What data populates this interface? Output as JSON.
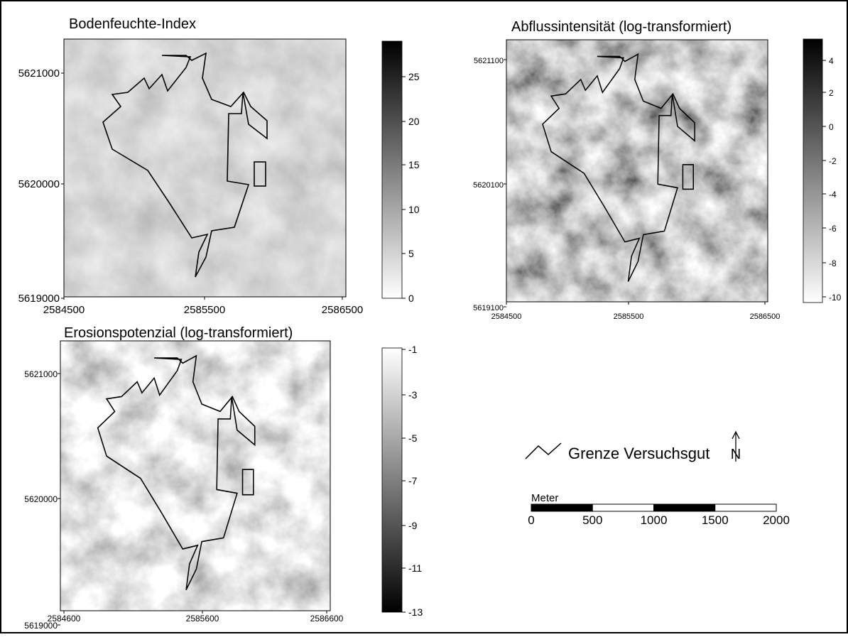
{
  "panels": [
    {
      "title": "Bodenfeuchte-Index",
      "y_ticks": [
        "5621000",
        "5620000",
        "5619000"
      ],
      "x_ticks": [
        "2584500",
        "2585500",
        "2586500"
      ],
      "colorbar_ticks": [
        "25",
        "20",
        "15",
        "10",
        "5",
        "0"
      ]
    },
    {
      "title": "Abflussintensität (log-transformiert)",
      "y_ticks": [
        "5621100",
        "5620100",
        "5619100"
      ],
      "x_ticks": [
        "2584500",
        "2585500",
        "2586500"
      ],
      "colorbar_ticks": [
        "4",
        "2",
        "0",
        "-2",
        "-4",
        "-6",
        "-8",
        "-10"
      ]
    },
    {
      "title": "Erosionspotenzial (log-transformiert)",
      "y_ticks": [
        "5621000",
        "5620000",
        "5619000"
      ],
      "x_ticks": [
        "2584600",
        "2585600",
        "2586600"
      ],
      "colorbar_ticks": [
        "-1",
        "-3",
        "-5",
        "-7",
        "-9",
        "-11",
        "-13"
      ]
    }
  ],
  "legend": {
    "boundary_label": "Grenze Versuchsgut",
    "north": "N"
  },
  "scale_bar": {
    "unit": "Meter",
    "ticks": [
      "0",
      "500",
      "1000",
      "1500",
      "2000"
    ]
  }
}
